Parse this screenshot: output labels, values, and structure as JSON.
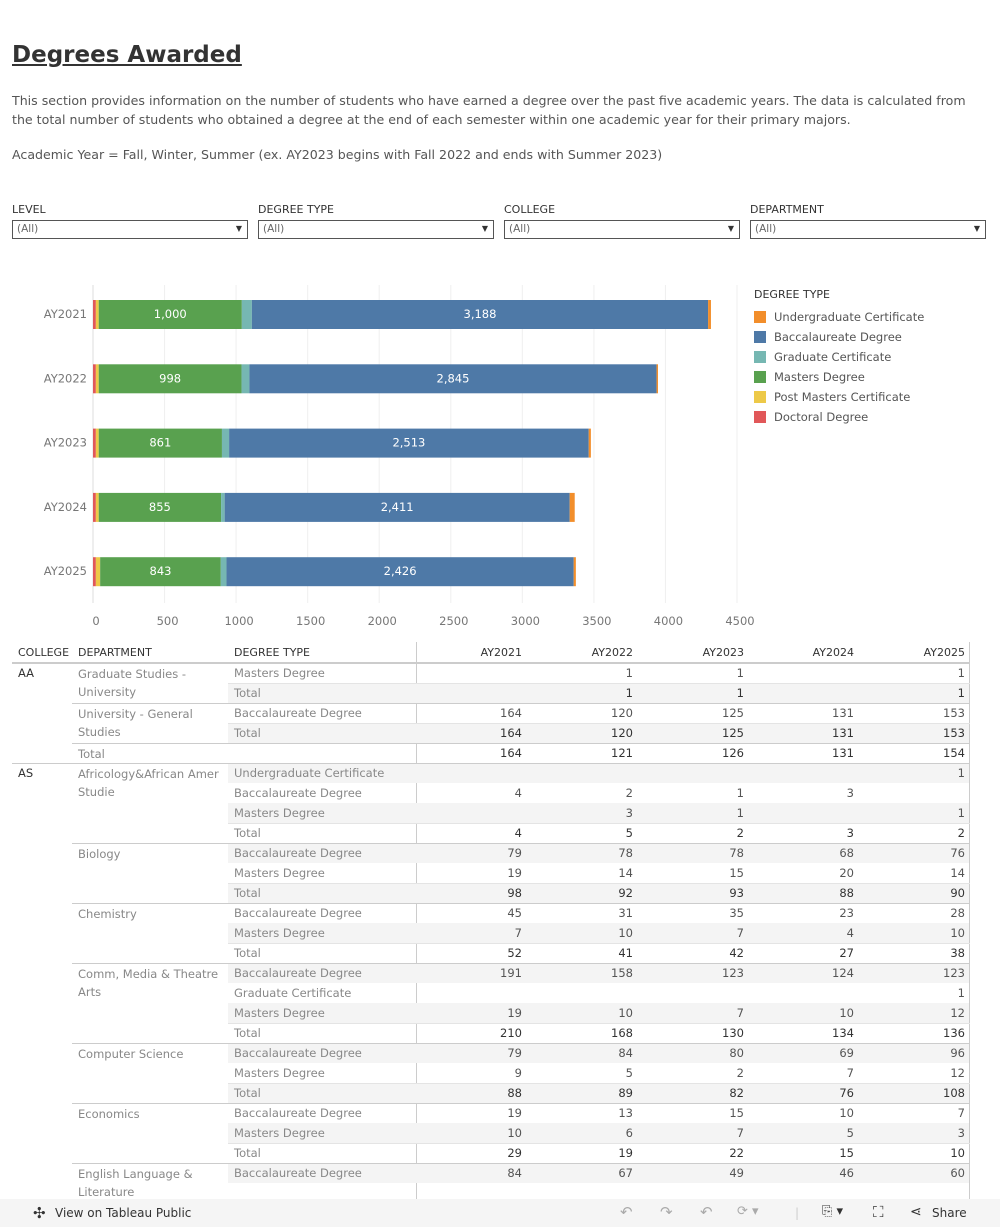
{
  "page": {
    "title": "Degrees Awarded",
    "description": "This section provides information on the number of students who have earned a degree over the past five academic years. The data is calculated from the total number of students who obtained a degree at the end of each semester within one academic year for their primary majors.",
    "note": "Academic Year = Fall, Winter, Summer (ex. AY2023 begins with Fall 2022 and ends with Summer 2023)"
  },
  "filters": [
    {
      "label": "LEVEL",
      "value": "(All)"
    },
    {
      "label": "DEGREE TYPE",
      "value": "(All)"
    },
    {
      "label": "COLLEGE",
      "value": "(All)"
    },
    {
      "label": "DEPARTMENT",
      "value": "(All)"
    }
  ],
  "chart_data": {
    "type": "bar",
    "orientation": "horizontal",
    "stacked": true,
    "categories": [
      "AY2021",
      "AY2022",
      "AY2023",
      "AY2024",
      "AY2025"
    ],
    "xlim": [
      0,
      4500
    ],
    "xticks": [
      0,
      500,
      1000,
      1500,
      2000,
      2500,
      3000,
      3500,
      4000,
      4500
    ],
    "grid": true,
    "legend_title": "DEGREE TYPE",
    "legend_position": "right",
    "series": [
      {
        "name": "Doctoral Degree",
        "color": "#e15759",
        "values": [
          20,
          20,
          20,
          20,
          20
        ]
      },
      {
        "name": "Post Masters Certificate",
        "color": "#edc948",
        "values": [
          20,
          20,
          20,
          20,
          30
        ]
      },
      {
        "name": "Masters Degree",
        "color": "#59a14f",
        "values": [
          1000,
          998,
          861,
          855,
          843
        ],
        "labels": [
          "1,000",
          "998",
          "861",
          "855",
          "843"
        ]
      },
      {
        "name": "Graduate Certificate",
        "color": "#76b7b2",
        "values": [
          70,
          55,
          50,
          25,
          40
        ]
      },
      {
        "name": "Baccalaureate Degree",
        "color": "#4e79a7",
        "values": [
          3188,
          2845,
          2513,
          2411,
          2426
        ],
        "labels": [
          "3,188",
          "2,845",
          "2,513",
          "2,411",
          "2,426"
        ]
      },
      {
        "name": "Undergraduate Certificate",
        "color": "#f28e2b",
        "values": [
          20,
          10,
          15,
          35,
          15
        ]
      }
    ],
    "legend_order": [
      "Undergraduate Certificate",
      "Baccalaureate Degree",
      "Graduate Certificate",
      "Masters Degree",
      "Post Masters Certificate",
      "Doctoral Degree"
    ]
  },
  "table": {
    "headers": [
      "COLLEGE",
      "DEPARTMENT",
      "DEGREE TYPE",
      "AY2021",
      "AY2022",
      "AY2023",
      "AY2024",
      "AY2025"
    ],
    "rows": [
      {
        "college": "AA",
        "dept": "Graduate Studies - University",
        "type": "Masters Degree",
        "v": [
          "",
          "1",
          "1",
          "",
          "1"
        ],
        "sep": "college"
      },
      {
        "type": "Total",
        "v": [
          "",
          "1",
          "1",
          "",
          "1"
        ],
        "total": true
      },
      {
        "dept": "University - General Studies",
        "type": "Baccalaureate Degree",
        "v": [
          "164",
          "120",
          "125",
          "131",
          "153"
        ],
        "sep": "dept"
      },
      {
        "type": "Total",
        "v": [
          "164",
          "120",
          "125",
          "131",
          "153"
        ],
        "total": true
      },
      {
        "dept": "Total",
        "type": "",
        "v": [
          "164",
          "121",
          "126",
          "131",
          "154"
        ],
        "total": true,
        "sep": "dept"
      },
      {
        "college": "AS",
        "dept": "Africology&African Amer Studie",
        "type": "Undergraduate Certificate",
        "v": [
          "",
          "",
          "",
          "",
          "1"
        ],
        "sep": "college"
      },
      {
        "type": "Baccalaureate Degree",
        "v": [
          "4",
          "2",
          "1",
          "3",
          ""
        ]
      },
      {
        "type": "Masters Degree",
        "v": [
          "",
          "3",
          "1",
          "",
          "1"
        ]
      },
      {
        "type": "Total",
        "v": [
          "4",
          "5",
          "2",
          "3",
          "2"
        ],
        "total": true
      },
      {
        "dept": "Biology",
        "type": "Baccalaureate Degree",
        "v": [
          "79",
          "78",
          "78",
          "68",
          "76"
        ],
        "sep": "dept"
      },
      {
        "type": "Masters Degree",
        "v": [
          "19",
          "14",
          "15",
          "20",
          "14"
        ]
      },
      {
        "type": "Total",
        "v": [
          "98",
          "92",
          "93",
          "88",
          "90"
        ],
        "total": true
      },
      {
        "dept": "Chemistry",
        "type": "Baccalaureate Degree",
        "v": [
          "45",
          "31",
          "35",
          "23",
          "28"
        ],
        "sep": "dept"
      },
      {
        "type": "Masters Degree",
        "v": [
          "7",
          "10",
          "7",
          "4",
          "10"
        ]
      },
      {
        "type": "Total",
        "v": [
          "52",
          "41",
          "42",
          "27",
          "38"
        ],
        "total": true
      },
      {
        "dept": "Comm, Media & Theatre Arts",
        "type": "Baccalaureate Degree",
        "v": [
          "191",
          "158",
          "123",
          "124",
          "123"
        ],
        "sep": "dept"
      },
      {
        "type": "Graduate Certificate",
        "v": [
          "",
          "",
          "",
          "",
          "1"
        ]
      },
      {
        "type": "Masters Degree",
        "v": [
          "19",
          "10",
          "7",
          "10",
          "12"
        ]
      },
      {
        "type": "Total",
        "v": [
          "210",
          "168",
          "130",
          "134",
          "136"
        ],
        "total": true
      },
      {
        "dept": "Computer Science",
        "type": "Baccalaureate Degree",
        "v": [
          "79",
          "84",
          "80",
          "69",
          "96"
        ],
        "sep": "dept"
      },
      {
        "type": "Masters Degree",
        "v": [
          "9",
          "5",
          "2",
          "7",
          "12"
        ]
      },
      {
        "type": "Total",
        "v": [
          "88",
          "89",
          "82",
          "76",
          "108"
        ],
        "total": true
      },
      {
        "dept": "Economics",
        "type": "Baccalaureate Degree",
        "v": [
          "19",
          "13",
          "15",
          "10",
          "7"
        ],
        "sep": "dept"
      },
      {
        "type": "Masters Degree",
        "v": [
          "10",
          "6",
          "7",
          "5",
          "3"
        ]
      },
      {
        "type": "Total",
        "v": [
          "29",
          "19",
          "22",
          "15",
          "10"
        ],
        "total": true
      },
      {
        "dept": "English Language & Literature",
        "type": "Baccalaureate Degree",
        "v": [
          "84",
          "67",
          "49",
          "46",
          "60"
        ],
        "sep": "dept"
      }
    ]
  },
  "footer": {
    "view_label": "View on Tableau Public",
    "share_label": "Share"
  }
}
